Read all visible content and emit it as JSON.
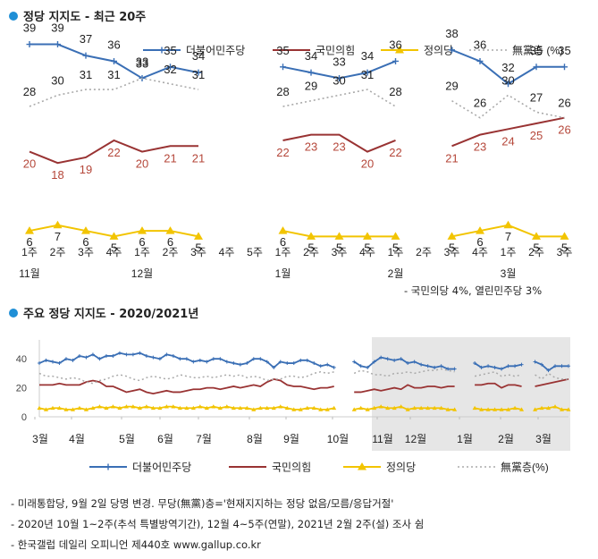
{
  "section1": {
    "title": "정당 지지도 - 최근 20주"
  },
  "section2": {
    "title": "주요 정당 지지도 - 2020/2021년"
  },
  "legend": [
    {
      "name": "더불어민주당",
      "color": "#3a6fb5",
      "style": "solid-plus"
    },
    {
      "name": "국민의힘",
      "color": "#993333",
      "style": "solid"
    },
    {
      "name": "정의당",
      "color": "#f2c400",
      "style": "solid-triangle"
    },
    {
      "name": "無黨층 (%)",
      "color": "#aaaaaa",
      "style": "dotted"
    }
  ],
  "legend2_nodang": "無黨층(%)",
  "footnote_top": "- 국민의당 4%, 열린민주당 3%",
  "notes": [
    "- 미래통합당, 9월 2일 당명 변경. 무당(無黨)층='현재지지하는 정당 없음/모름/응답거절'",
    "- 2020년 10월 1~2주(추석 특별방역기간), 12월 4~5주(연말), 2021년 2월 2주(설) 조사 쉼",
    "- 한국갤럽 데일리 오피니언 제440호 www.gallup.co.kr"
  ],
  "chart_data": [
    {
      "type": "line",
      "title": "정당 지지도 - 최근 20주",
      "x": [
        "1주",
        "2주",
        "3주",
        "4주",
        "1주",
        "2주",
        "3주",
        "4주",
        "5주",
        "1주",
        "2주",
        "3주",
        "4주",
        "1주",
        "2주",
        "3주",
        "4주",
        "1주",
        "2주",
        "3주"
      ],
      "month_labels": [
        {
          "index": 0,
          "label": "11월"
        },
        {
          "index": 4,
          "label": "12월"
        },
        {
          "index": 9,
          "label": "1월"
        },
        {
          "index": 13,
          "label": "2월"
        },
        {
          "index": 17,
          "label": "3월"
        }
      ],
      "series": [
        {
          "name": "더불어민주당",
          "values": [
            39,
            39,
            37,
            36,
            33,
            35,
            34,
            null,
            null,
            35,
            34,
            33,
            34,
            36,
            null,
            38,
            36,
            32,
            35,
            35
          ]
        },
        {
          "name": "국민의힘",
          "values": [
            20,
            18,
            19,
            22,
            20,
            21,
            21,
            null,
            null,
            22,
            23,
            23,
            20,
            22,
            null,
            21,
            23,
            24,
            25,
            26
          ]
        },
        {
          "name": "정의당",
          "values": [
            6,
            7,
            6,
            5,
            6,
            6,
            5,
            null,
            null,
            6,
            5,
            5,
            5,
            5,
            null,
            5,
            6,
            7,
            5,
            5
          ]
        },
        {
          "name": "無黨층",
          "values": [
            28,
            30,
            31,
            31,
            33,
            32,
            31,
            null,
            null,
            28,
            29,
            30,
            31,
            28,
            null,
            29,
            26,
            30,
            27,
            26
          ]
        }
      ]
    },
    {
      "type": "line",
      "title": "주요 정당 지지도 - 2020/2021년",
      "x_labels": [
        "3월",
        "4월",
        "5월",
        "6월",
        "7월",
        "8월",
        "9월",
        "10월",
        "11월",
        "12월",
        "1월",
        "2월",
        "3월"
      ],
      "y_ticks": [
        0,
        20,
        40
      ],
      "ylim": [
        0,
        50
      ],
      "shaded_region": "11월~3월 (최근 20주)",
      "series": [
        {
          "name": "더불어민주당",
          "values": [
            37,
            39,
            38,
            37,
            40,
            39,
            42,
            41,
            43,
            40,
            42,
            42,
            44,
            43,
            43,
            44,
            42,
            41,
            40,
            43,
            42,
            40,
            40,
            38,
            39,
            38,
            40,
            40,
            38,
            37,
            36,
            37,
            40,
            40,
            38,
            34,
            38,
            37,
            37,
            39,
            39,
            37,
            35,
            36,
            34,
            null,
            null,
            38,
            35,
            34,
            38,
            41,
            40,
            39,
            40,
            37,
            38,
            36,
            35,
            34,
            35,
            33,
            33,
            null,
            null,
            37,
            34,
            35,
            34,
            33,
            35,
            35,
            36,
            null,
            38,
            36,
            32,
            35,
            35,
            35
          ]
        },
        {
          "name": "국민의힘",
          "values": [
            22,
            22,
            22,
            23,
            22,
            22,
            22,
            24,
            25,
            24,
            21,
            21,
            19,
            17,
            18,
            19,
            17,
            16,
            17,
            18,
            17,
            17,
            18,
            19,
            19,
            20,
            20,
            19,
            20,
            21,
            20,
            21,
            22,
            21,
            24,
            26,
            25,
            22,
            21,
            21,
            20,
            19,
            20,
            20,
            21,
            null,
            null,
            17,
            17,
            18,
            19,
            18,
            19,
            20,
            19,
            22,
            20,
            20,
            21,
            21,
            20,
            21,
            21,
            null,
            null,
            22,
            22,
            23,
            23,
            20,
            22,
            22,
            21,
            null,
            21,
            22,
            23,
            24,
            25,
            26
          ]
        },
        {
          "name": "정의당",
          "values": [
            6,
            5,
            6,
            6,
            5,
            5,
            6,
            5,
            6,
            7,
            6,
            7,
            6,
            7,
            7,
            6,
            7,
            6,
            6,
            7,
            7,
            6,
            6,
            6,
            7,
            6,
            7,
            6,
            7,
            6,
            6,
            6,
            5,
            6,
            6,
            6,
            7,
            6,
            5,
            5,
            6,
            6,
            5,
            5,
            6,
            null,
            null,
            5,
            6,
            5,
            6,
            7,
            6,
            6,
            7,
            5,
            6,
            6,
            6,
            6,
            6,
            5,
            5,
            null,
            null,
            6,
            5,
            5,
            5,
            5,
            5,
            6,
            5,
            null,
            5,
            6,
            6,
            7,
            5,
            5
          ]
        },
        {
          "name": "無黨층",
          "values": [
            30,
            28,
            28,
            27,
            26,
            27,
            26,
            24,
            23,
            25,
            26,
            28,
            29,
            28,
            26,
            25,
            27,
            28,
            27,
            26,
            27,
            29,
            28,
            27,
            27,
            28,
            27,
            28,
            29,
            28,
            29,
            27,
            28,
            27,
            25,
            26,
            26,
            28,
            28,
            27,
            28,
            30,
            31,
            30,
            31,
            null,
            null,
            30,
            32,
            31,
            29,
            29,
            28,
            30,
            30,
            31,
            30,
            31,
            32,
            32,
            33,
            32,
            31,
            null,
            null,
            28,
            29,
            30,
            31,
            28,
            29,
            28,
            29,
            null,
            29,
            26,
            30,
            27,
            26,
            26
          ]
        }
      ]
    }
  ]
}
